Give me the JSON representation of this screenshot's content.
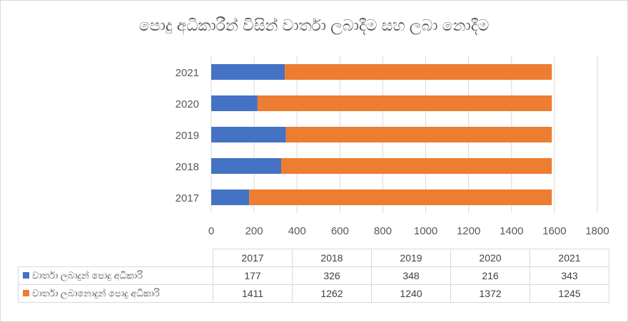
{
  "chart_data": {
    "type": "bar",
    "orientation": "horizontal",
    "stacked": true,
    "title": "පොදු අධිකාරීන් විසින් වාර්තා ලබාදීම සහ ලබා නොදීම",
    "categories": [
      "2017",
      "2018",
      "2019",
      "2020",
      "2021"
    ],
    "series": [
      {
        "name": "වාර්තා ලබාදුන් පොදු අධිකාරි",
        "color": "#4472c4",
        "values": [
          177,
          326,
          348,
          216,
          343
        ]
      },
      {
        "name": "වාර්තා ලබානොදුන් පොදු අධිකාරි",
        "color": "#ed7d31",
        "values": [
          1411,
          1262,
          1240,
          1372,
          1245
        ]
      }
    ],
    "xlim": [
      0,
      1800
    ],
    "xticks": [
      "0",
      "200",
      "400",
      "600",
      "800",
      "1000",
      "1200",
      "1400",
      "1600",
      "1800"
    ],
    "gridlines": true,
    "legend": "data-table"
  }
}
